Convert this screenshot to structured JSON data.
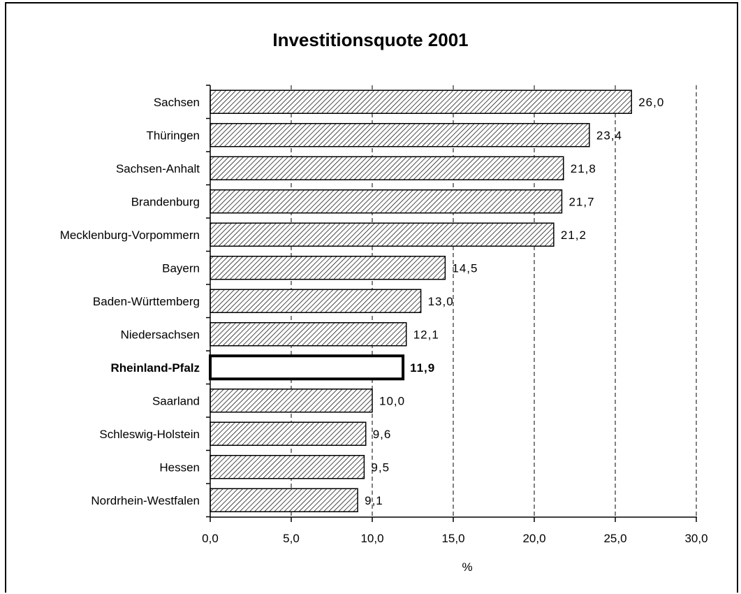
{
  "chart_data": {
    "type": "bar",
    "orientation": "horizontal",
    "title": "Investitionsquote 2001",
    "xlabel": "%",
    "ylabel": "",
    "xlim": [
      0,
      30
    ],
    "xticks": [
      "0,0",
      "5,0",
      "10,0",
      "15,0",
      "20,0",
      "25,0",
      "30,0"
    ],
    "grid": "vertical dashed",
    "categories": [
      "Sachsen",
      "Thüringen",
      "Sachsen-Anhalt",
      "Brandenburg",
      "Mecklenburg-Vorpommern",
      "Bayern",
      "Baden-Württemberg",
      "Niedersachsen",
      "Rheinland-Pfalz",
      "Saarland",
      "Schleswig-Holstein",
      "Hessen",
      "Nordrhein-Westfalen"
    ],
    "values": [
      26.0,
      23.4,
      21.8,
      21.7,
      21.2,
      14.5,
      13.0,
      12.1,
      11.9,
      10.0,
      9.6,
      9.5,
      9.1
    ],
    "value_labels": [
      "26,0",
      "23,4",
      "21,8",
      "21,7",
      "21,2",
      "14,5",
      "13,0",
      "12,1",
      "11,9",
      "10,0",
      "9,6",
      "9,5",
      "9,1"
    ],
    "highlighted": "Rheinland-Pfalz",
    "colors": {
      "bar_fill": "#ffffff",
      "hatch": "#000000",
      "highlight_fill": "#ffffff"
    }
  }
}
